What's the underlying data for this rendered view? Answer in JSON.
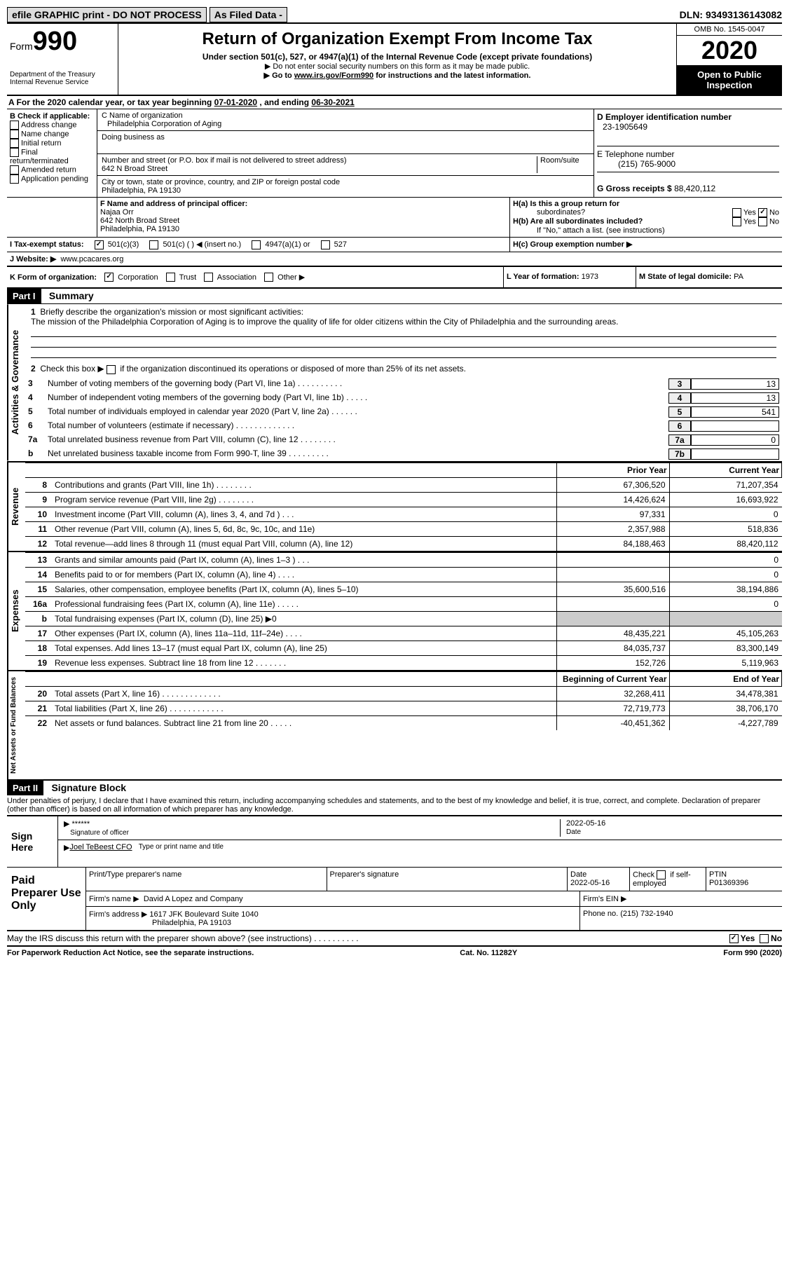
{
  "topbar": {
    "efile": "efile GRAPHIC print - DO NOT PROCESS",
    "asfiled": "As Filed Data -",
    "dln_label": "DLN:",
    "dln": "93493136143082"
  },
  "header": {
    "form_small": "Form",
    "form_big": "990",
    "dept1": "Department of the Treasury",
    "dept2": "Internal Revenue Service",
    "title": "Return of Organization Exempt From Income Tax",
    "subtitle": "Under section 501(c), 527, or 4947(a)(1) of the Internal Revenue Code (except private foundations)",
    "note1": "▶ Do not enter social security numbers on this form as it may be made public.",
    "note2_pre": "▶ Go to ",
    "note2_link": "www.irs.gov/Form990",
    "note2_post": " for instructions and the latest information.",
    "omb": "OMB No. 1545-0047",
    "year": "2020",
    "inspect1": "Open to Public",
    "inspect2": "Inspection"
  },
  "rowA": {
    "pre": "A   For the 2020 calendar year, or tax year beginning ",
    "begin": "07-01-2020",
    "mid": " , and ending ",
    "end": "06-30-2021"
  },
  "B": {
    "head": "B Check if applicable:",
    "o1": "Address change",
    "o2": "Name change",
    "o3": "Initial return",
    "o4": "Final return/terminated",
    "o5": "Amended return",
    "o6": "Application pending"
  },
  "C": {
    "name_label": "C Name of organization",
    "name": "Philadelphia Corporation of Aging",
    "dba_label": "Doing business as",
    "addr_label": "Number and street (or P.O. box if mail is not delivered to street address)",
    "room_label": "Room/suite",
    "addr": "642 N Broad Street",
    "city_label": "City or town, state or province, country, and ZIP or foreign postal code",
    "city": "Philadelphia, PA  19130"
  },
  "D": {
    "label": "D Employer identification number",
    "val": "23-1905649"
  },
  "E": {
    "label": "E Telephone number",
    "val": "(215) 765-9000"
  },
  "G": {
    "label": "G Gross receipts $",
    "val": "88,420,112"
  },
  "F": {
    "label": "F  Name and address of principal officer:",
    "name": "Najaa Orr",
    "addr1": "642 North Broad Street",
    "addr2": "Philadelphia, PA  19130"
  },
  "H": {
    "a": "H(a)  Is this a group return for",
    "a2": "subordinates?",
    "yes": "Yes",
    "no": "No",
    "b": "H(b)  Are all subordinates included?",
    "bnote": "If \"No,\" attach a list. (see instructions)",
    "c": "H(c)  Group exemption number ▶"
  },
  "I": {
    "label": "I   Tax-exempt status:",
    "o1": "501(c)(3)",
    "o2": "501(c) (   ) ◀ (insert no.)",
    "o3": "4947(a)(1) or",
    "o4": "527"
  },
  "J": {
    "label": "J   Website: ▶",
    "val": "www.pcacares.org"
  },
  "K": {
    "label": "K Form of organization:",
    "o1": "Corporation",
    "o2": "Trust",
    "o3": "Association",
    "o4": "Other ▶"
  },
  "L": {
    "label": "L Year of formation:",
    "val": "1973"
  },
  "M": {
    "label": "M State of legal domicile:",
    "val": "PA"
  },
  "part1": {
    "num": "Part I",
    "title": "Summary"
  },
  "s1": {
    "l1": "Briefly describe the organization's mission or most significant activities:",
    "mission": "The mission of the Philadelphia Corporation of Aging is to improve the quality of life for older citizens within the City of Philadelphia and the surrounding areas.",
    "l2": "Check this box ▶",
    "l2b": "if the organization discontinued its operations or disposed of more than 25% of its net assets.",
    "r3": {
      "n": "3",
      "t": "Number of voting members of the governing body (Part VI, line 1a)   .    .    .    .    .    .    .    .    .    .",
      "b": "3",
      "v": "13"
    },
    "r4": {
      "n": "4",
      "t": "Number of independent voting members of the governing body (Part VI, line 1b)   .    .    .    .    .",
      "b": "4",
      "v": "13"
    },
    "r5": {
      "n": "5",
      "t": "Total number of individuals employed in calendar year 2020 (Part V, line 2a)   .    .    .    .    .    .",
      "b": "5",
      "v": "541"
    },
    "r6": {
      "n": "6",
      "t": "Total number of volunteers (estimate if necessary)   .    .    .    .    .    .    .    .    .    .    .    .    .",
      "b": "6",
      "v": ""
    },
    "r7a": {
      "n": "7a",
      "t": "Total unrelated business revenue from Part VIII, column (C), line 12   .    .    .    .    .    .    .    .",
      "b": "7a",
      "v": "0"
    },
    "r7b": {
      "n": "b",
      "t": "Net unrelated business taxable income from Form 990-T, line 39   .    .    .    .    .    .    .    .    .",
      "b": "7b",
      "v": ""
    }
  },
  "cols": {
    "prior": "Prior Year",
    "current": "Current Year",
    "beg": "Beginning of Current Year",
    "end": "End of Year"
  },
  "sections": {
    "ag": "Activities & Governance",
    "rev": "Revenue",
    "exp": "Expenses",
    "na": "Net Assets or Fund Balances"
  },
  "rev": [
    {
      "n": "8",
      "t": "Contributions and grants (Part VIII, line 1h)   .    .    .    .    .    .    .    .",
      "p": "67,306,520",
      "c": "71,207,354"
    },
    {
      "n": "9",
      "t": "Program service revenue (Part VIII, line 2g)   .    .    .    .    .    .    .    .",
      "p": "14,426,624",
      "c": "16,693,922"
    },
    {
      "n": "10",
      "t": "Investment income (Part VIII, column (A), lines 3, 4, and 7d )   .    .    .",
      "p": "97,331",
      "c": "0"
    },
    {
      "n": "11",
      "t": "Other revenue (Part VIII, column (A), lines 5, 6d, 8c, 9c, 10c, and 11e)",
      "p": "2,357,988",
      "c": "518,836"
    },
    {
      "n": "12",
      "t": "Total revenue—add lines 8 through 11 (must equal Part VIII, column (A), line 12)",
      "p": "84,188,463",
      "c": "88,420,112"
    }
  ],
  "exp": [
    {
      "n": "13",
      "t": "Grants and similar amounts paid (Part IX, column (A), lines 1–3 )   .    .    .",
      "p": "",
      "c": "0"
    },
    {
      "n": "14",
      "t": "Benefits paid to or for members (Part IX, column (A), line 4)   .    .    .    .",
      "p": "",
      "c": "0"
    },
    {
      "n": "15",
      "t": "Salaries, other compensation, employee benefits (Part IX, column (A), lines 5–10)",
      "p": "35,600,516",
      "c": "38,194,886"
    },
    {
      "n": "16a",
      "t": "Professional fundraising fees (Part IX, column (A), line 11e)   .    .    .    .    .",
      "p": "",
      "c": "0"
    },
    {
      "n": "b",
      "t": "Total fundraising expenses (Part IX, column (D), line 25) ▶0",
      "p": "shade",
      "c": "shade"
    },
    {
      "n": "17",
      "t": "Other expenses (Part IX, column (A), lines 11a–11d, 11f–24e)   .    .    .    .",
      "p": "48,435,221",
      "c": "45,105,263"
    },
    {
      "n": "18",
      "t": "Total expenses. Add lines 13–17 (must equal Part IX, column (A), line 25)",
      "p": "84,035,737",
      "c": "83,300,149"
    },
    {
      "n": "19",
      "t": "Revenue less expenses. Subtract line 18 from line 12   .    .    .    .    .    .    .",
      "p": "152,726",
      "c": "5,119,963"
    }
  ],
  "na": [
    {
      "n": "20",
      "t": "Total assets (Part X, line 16)   .    .    .    .    .    .    .    .    .    .    .    .    .",
      "p": "32,268,411",
      "c": "34,478,381"
    },
    {
      "n": "21",
      "t": "Total liabilities (Part X, line 26)   .    .    .    .    .    .    .    .    .    .    .    .",
      "p": "72,719,773",
      "c": "38,706,170"
    },
    {
      "n": "22",
      "t": "Net assets or fund balances. Subtract line 21 from line 20   .    .    .    .    .",
      "p": "-40,451,362",
      "c": "-4,227,789"
    }
  ],
  "part2": {
    "num": "Part II",
    "title": "Signature Block"
  },
  "sig": {
    "perjury": "Under penalties of perjury, I declare that I have examined this return, including accompanying schedules and statements, and to the best of my knowledge and belief, it is true, correct, and complete. Declaration of preparer (other than officer) is based on all information of which preparer has any knowledge.",
    "sign_here": "Sign Here",
    "stars": "******",
    "sig_label": "Signature of officer",
    "date": "2022-05-16",
    "date_label": "Date",
    "name": "Joel TeBeest CFO",
    "name_label": "Type or print name and title"
  },
  "prep": {
    "label": "Paid Preparer Use Only",
    "h1": "Print/Type preparer's name",
    "h2": "Preparer's signature",
    "h3": "Date",
    "h3v": "2022-05-16",
    "h4": "Check",
    "h4b": "if self-employed",
    "h5": "PTIN",
    "h5v": "P01369396",
    "firm_label": "Firm's name   ▶",
    "firm": "David A Lopez and Company",
    "ein_label": "Firm's EIN ▶",
    "addr_label": "Firm's address ▶",
    "addr1": "1617 JFK Boulevard Suite 1040",
    "addr2": "Philadelphia, PA  19103",
    "phone_label": "Phone no.",
    "phone": "(215) 732-1940"
  },
  "discuss": {
    "t": "May the IRS discuss this return with the preparer shown above? (see instructions)   .    .    .    .    .    .    .    .    .    .",
    "yes": "Yes",
    "no": "No"
  },
  "footer": {
    "l": "For Paperwork Reduction Act Notice, see the separate instructions.",
    "c": "Cat. No. 11282Y",
    "r": "Form 990 (2020)"
  }
}
